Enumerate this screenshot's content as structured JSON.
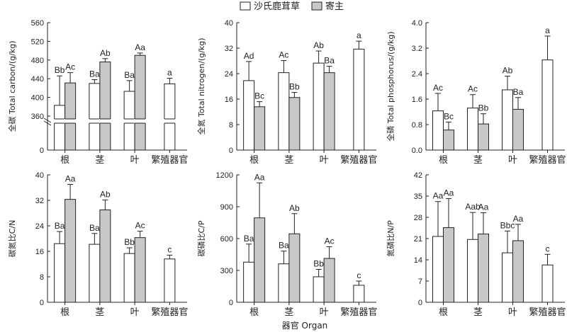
{
  "legend": {
    "items": [
      {
        "label": "沙氏鹿茸草",
        "fill": "#ffffff"
      },
      {
        "label": "寄主",
        "fill": "#c8c8c8"
      }
    ]
  },
  "x_axis_title": "器官 Organ",
  "colors": {
    "axis": "#222222",
    "host_bar": "#c8c8c8",
    "plant_bar": "#ffffff"
  },
  "chart_data": [
    {
      "type": "bar",
      "ylabel": "全碳 Total carbon/(g/kg)",
      "ylim": [
        0,
        560
      ],
      "axis_break": [
        40,
        360
      ],
      "yticks": [
        0,
        360,
        400,
        440,
        480,
        520,
        560
      ],
      "categories": [
        "根",
        "茎",
        "叶",
        "繁殖器官"
      ],
      "series": [
        {
          "name": "沙氏鹿茸草",
          "values": [
            383,
            430,
            413,
            429
          ],
          "errors": [
            63,
            8,
            23,
            12
          ],
          "labels": [
            "Bb",
            "Ba",
            "Ba",
            "a"
          ]
        },
        {
          "name": "寄主",
          "values": [
            431,
            476,
            490,
            null
          ],
          "errors": [
            22,
            7,
            5,
            null
          ],
          "labels": [
            "Ac",
            "Ab",
            "Aa",
            ""
          ]
        }
      ]
    },
    {
      "type": "bar",
      "ylabel": "全氮 Total nitrogen/(g/kg)",
      "ylim": [
        0,
        40
      ],
      "yticks": [
        0,
        8,
        16,
        24,
        32,
        40
      ],
      "categories": [
        "根",
        "茎",
        "叶",
        "繁殖器官"
      ],
      "series": [
        {
          "name": "沙氏鹿茸草",
          "values": [
            21.8,
            24.3,
            27.3,
            31.7
          ],
          "errors": [
            6.0,
            3.8,
            3.8,
            2.5
          ],
          "labels": [
            "Ad",
            "Ac",
            "Ab",
            "a"
          ]
        },
        {
          "name": "寄主",
          "values": [
            13.6,
            16.5,
            24.3,
            null
          ],
          "errors": [
            1.6,
            1.6,
            2.0,
            null
          ],
          "labels": [
            "Bc",
            "Bb",
            "Ba",
            ""
          ]
        }
      ]
    },
    {
      "type": "bar",
      "ylabel": "全磷 Total phosphorus/(g/kg)",
      "ylim": [
        0,
        4.0
      ],
      "yticks": [
        0,
        0.8,
        1.6,
        2.4,
        3.2,
        4.0
      ],
      "tick_format": "fixed1",
      "categories": [
        "根",
        "茎",
        "叶",
        "繁殖器官"
      ],
      "series": [
        {
          "name": "沙氏鹿茸草",
          "values": [
            1.23,
            1.32,
            1.89,
            2.83
          ],
          "errors": [
            0.55,
            0.42,
            0.43,
            0.75
          ],
          "labels": [
            "Ac",
            "Ac",
            "Ab",
            "a"
          ]
        },
        {
          "name": "寄主",
          "values": [
            0.63,
            0.82,
            1.28,
            null
          ],
          "errors": [
            0.25,
            0.32,
            0.37,
            null
          ],
          "labels": [
            "Bc",
            "Bb",
            "Ba",
            ""
          ]
        }
      ]
    },
    {
      "type": "bar",
      "ylabel": "碳氮比C/N",
      "ylim": [
        0,
        40
      ],
      "yticks": [
        0,
        8,
        16,
        24,
        32,
        40
      ],
      "categories": [
        "根",
        "茎",
        "叶",
        "繁殖器官"
      ],
      "series": [
        {
          "name": "沙氏鹿茸草",
          "values": [
            18.4,
            18.2,
            15.3,
            13.6
          ],
          "errors": [
            3.8,
            3.4,
            1.8,
            1.2
          ],
          "labels": [
            "Ba",
            "Ba",
            "Bb",
            "c"
          ]
        },
        {
          "name": "寄主",
          "values": [
            32.3,
            29.0,
            20.3,
            null
          ],
          "errors": [
            4.7,
            3.1,
            2.0,
            null
          ],
          "labels": [
            "Aa",
            "Ab",
            "Ac",
            ""
          ]
        }
      ]
    },
    {
      "type": "bar",
      "ylabel": "碳磷比C/P",
      "ylim": [
        0,
        1200
      ],
      "yticks": [
        0,
        300,
        600,
        900,
        1200
      ],
      "categories": [
        "根",
        "茎",
        "叶",
        "繁殖器官"
      ],
      "series": [
        {
          "name": "沙氏鹿茸草",
          "values": [
            378,
            362,
            240,
            160
          ],
          "errors": [
            170,
            120,
            70,
            40
          ],
          "labels": [
            "Ba",
            "Ba",
            "Bb",
            "c"
          ]
        },
        {
          "name": "寄主",
          "values": [
            795,
            645,
            413,
            null
          ],
          "errors": [
            330,
            190,
            110,
            null
          ],
          "labels": [
            "Aa",
            "Ab",
            "Ac",
            ""
          ]
        }
      ]
    },
    {
      "type": "bar",
      "ylabel": "氮磷比N/P",
      "ylim": [
        0,
        42
      ],
      "yticks": [
        0,
        7,
        14,
        21,
        28,
        35,
        42
      ],
      "categories": [
        "根",
        "茎",
        "叶",
        "繁殖器官"
      ],
      "series": [
        {
          "name": "沙氏鹿茸草",
          "values": [
            21.7,
            20.7,
            16.3,
            12.3
          ],
          "errors": [
            11.5,
            8.9,
            7.2,
            3.5
          ],
          "labels": [
            "Aa",
            "Aab",
            "Bbc",
            "c"
          ]
        },
        {
          "name": "寄主",
          "values": [
            24.6,
            22.5,
            20.3,
            null
          ],
          "errors": [
            9.6,
            7.0,
            5.4,
            null
          ],
          "labels": [
            "Aa",
            "Aa",
            "Aa",
            ""
          ]
        }
      ]
    }
  ]
}
